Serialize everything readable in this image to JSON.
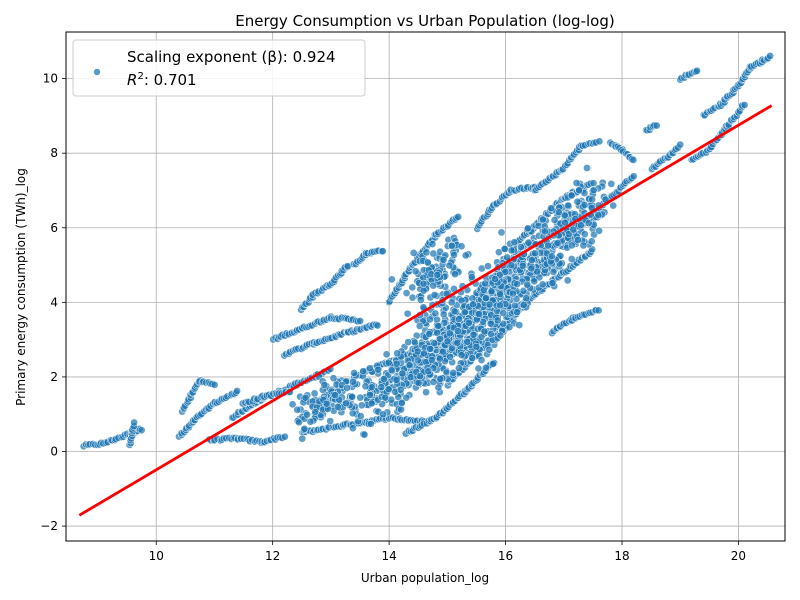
{
  "chart_data": {
    "type": "scatter",
    "title": "Energy Consumption vs Urban Population (log-log)",
    "xlabel": "Urban population_log",
    "ylabel": "Primary energy consumption (TWh)_log",
    "xlim": [
      8.45,
      20.8
    ],
    "ylim": [
      -2.4,
      11.25
    ],
    "xticks": [
      10,
      12,
      14,
      16,
      18,
      20
    ],
    "yticks": [
      -2,
      0,
      2,
      4,
      6,
      8,
      10
    ],
    "grid": true,
    "legend": {
      "placement": "top-left",
      "label_line1": "Scaling exponent (β): 0.924",
      "label_line2_var": "R",
      "label_line2_sup": "2",
      "label_line2_rest": ": 0.701"
    },
    "colors": {
      "points": "#1f77b4",
      "fit": "#ff0000",
      "grid": "#b0b0b0"
    },
    "fit_line": {
      "slope": 0.924,
      "intercept": -9.73,
      "x_start": 8.7,
      "x_end": 20.55
    },
    "series": [
      {
        "segments": [
          [
            [
              8.75,
              0.15
            ],
            [
              9.1,
              0.22
            ],
            [
              9.5,
              0.45
            ],
            [
              9.75,
              0.6
            ]
          ],
          [
            [
              9.55,
              0.2
            ],
            [
              9.62,
              0.75
            ]
          ],
          [
            [
              10.4,
              0.4
            ],
            [
              10.7,
              0.9
            ],
            [
              11.0,
              1.3
            ],
            [
              11.4,
              1.6
            ]
          ],
          [
            [
              10.45,
              1.1
            ],
            [
              10.75,
              1.9
            ],
            [
              11.0,
              1.8
            ]
          ],
          [
            [
              10.9,
              0.3
            ],
            [
              11.4,
              0.35
            ],
            [
              11.8,
              0.25
            ],
            [
              12.2,
              0.4
            ]
          ],
          [
            [
              11.3,
              0.9
            ],
            [
              11.8,
              1.4
            ],
            [
              12.4,
              1.8
            ],
            [
              13.0,
              2.2
            ]
          ],
          [
            [
              11.5,
              1.3
            ],
            [
              11.9,
              1.5
            ],
            [
              12.3,
              1.6
            ]
          ],
          [
            [
              12.0,
              3.0
            ],
            [
              12.5,
              3.3
            ],
            [
              13.0,
              3.6
            ],
            [
              13.5,
              3.5
            ]
          ],
          [
            [
              12.2,
              2.6
            ],
            [
              12.7,
              2.9
            ],
            [
              13.3,
              3.2
            ],
            [
              13.8,
              3.4
            ]
          ],
          [
            [
              12.5,
              0.5
            ],
            [
              13.2,
              0.7
            ],
            [
              14.0,
              0.9
            ],
            [
              14.6,
              0.8
            ]
          ],
          [
            [
              12.5,
              3.8
            ],
            [
              12.7,
              4.2
            ],
            [
              13.0,
              4.5
            ],
            [
              13.3,
              5.0
            ]
          ],
          [
            [
              13.4,
              5.0
            ],
            [
              13.6,
              5.3
            ],
            [
              13.9,
              5.4
            ]
          ],
          [
            [
              13.4,
              2.0
            ],
            [
              14.0,
              2.4
            ],
            [
              14.6,
              2.8
            ],
            [
              15.2,
              3.2
            ]
          ],
          [
            [
              14.0,
              4.0
            ],
            [
              14.4,
              5.0
            ],
            [
              14.8,
              5.8
            ],
            [
              15.2,
              6.3
            ]
          ],
          [
            [
              14.3,
              0.5
            ],
            [
              14.8,
              0.9
            ],
            [
              15.3,
              1.6
            ],
            [
              15.8,
              2.4
            ]
          ],
          [
            [
              14.5,
              2.0
            ],
            [
              15.0,
              2.8
            ],
            [
              15.5,
              3.6
            ],
            [
              16.0,
              4.3
            ]
          ],
          [
            [
              15.0,
              1.8
            ],
            [
              15.5,
              2.6
            ],
            [
              16.0,
              3.4
            ],
            [
              16.3,
              3.9
            ]
          ],
          [
            [
              15.2,
              3.5
            ],
            [
              15.6,
              4.3
            ],
            [
              16.0,
              5.0
            ],
            [
              16.4,
              5.6
            ]
          ],
          [
            [
              15.5,
              6.0
            ],
            [
              15.8,
              6.6
            ],
            [
              16.1,
              7.0
            ],
            [
              16.5,
              7.1
            ]
          ],
          [
            [
              16.0,
              3.6
            ],
            [
              16.5,
              4.2
            ],
            [
              17.0,
              4.8
            ],
            [
              17.5,
              5.4
            ]
          ],
          [
            [
              16.2,
              5.6
            ],
            [
              16.6,
              6.2
            ],
            [
              17.0,
              6.8
            ],
            [
              17.5,
              7.2
            ]
          ],
          [
            [
              16.5,
              7.0
            ],
            [
              17.0,
              7.6
            ],
            [
              17.3,
              8.2
            ],
            [
              17.6,
              8.3
            ]
          ],
          [
            [
              16.8,
              3.2
            ],
            [
              17.2,
              3.6
            ],
            [
              17.6,
              3.8
            ]
          ],
          [
            [
              17.0,
              5.5
            ],
            [
              17.4,
              6.2
            ],
            [
              17.8,
              6.8
            ],
            [
              18.2,
              7.4
            ]
          ],
          [
            [
              17.8,
              8.3
            ],
            [
              18.0,
              8.1
            ],
            [
              18.2,
              7.8
            ]
          ],
          [
            [
              18.4,
              8.6
            ],
            [
              18.6,
              8.75
            ]
          ],
          [
            [
              18.5,
              7.6
            ],
            [
              18.8,
              7.9
            ],
            [
              19.0,
              8.2
            ]
          ],
          [
            [
              19.0,
              10.0
            ],
            [
              19.3,
              10.2
            ]
          ],
          [
            [
              19.2,
              7.8
            ],
            [
              19.5,
              8.1
            ],
            [
              19.8,
              8.7
            ],
            [
              20.1,
              9.3
            ]
          ],
          [
            [
              19.4,
              9.0
            ],
            [
              19.7,
              9.3
            ],
            [
              20.0,
              9.8
            ],
            [
              20.2,
              10.3
            ],
            [
              20.55,
              10.6
            ]
          ]
        ],
        "clusters": [
          {
            "cx": 15.2,
            "cy": 3.2,
            "sx": 0.9,
            "sy": 1.1,
            "n": 420
          },
          {
            "cx": 14.2,
            "cy": 2.0,
            "sx": 0.8,
            "sy": 0.8,
            "n": 220
          },
          {
            "cx": 16.3,
            "cy": 4.8,
            "sx": 0.8,
            "sy": 1.0,
            "n": 260
          },
          {
            "cx": 17.2,
            "cy": 6.2,
            "sx": 0.6,
            "sy": 0.9,
            "n": 160
          },
          {
            "cx": 13.0,
            "cy": 1.4,
            "sx": 0.6,
            "sy": 0.6,
            "n": 120
          },
          {
            "cx": 14.8,
            "cy": 4.8,
            "sx": 0.5,
            "sy": 0.7,
            "n": 110
          }
        ]
      }
    ]
  }
}
